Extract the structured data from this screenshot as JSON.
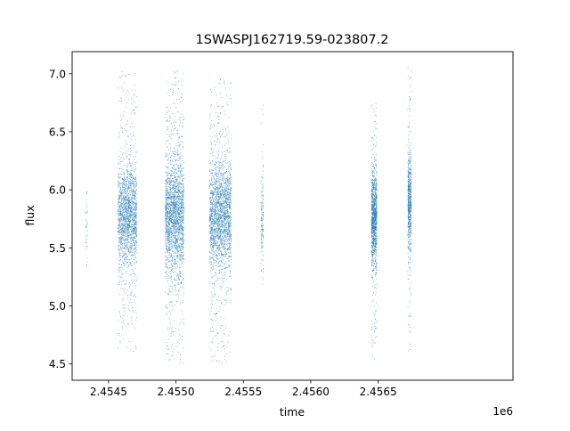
{
  "chart_data": {
    "type": "scatter",
    "title": "1SWASPJ162719.59-023807.2",
    "xlabel": "time",
    "ylabel": "flux",
    "x_offset_label": "1e6",
    "x_ticks": [
      "2.4545",
      "2.4550",
      "2.4555",
      "2.4560",
      "2.4565"
    ],
    "y_ticks": [
      "4.5",
      "5.0",
      "5.5",
      "6.0",
      "6.5",
      "7.0"
    ],
    "xlim": [
      2454230,
      2457500
    ],
    "ylim": [
      4.36,
      7.19
    ],
    "grid": false,
    "marker_color": "#1f77b4",
    "series": [
      {
        "clusters": [
          {
            "x_min": 2454330,
            "x_max": 2454345,
            "center": 5.75,
            "spread": 0.25,
            "y_min": 4.95,
            "y_max": 5.98,
            "n": 40
          },
          {
            "x_min": 2454570,
            "x_max": 2454710,
            "center": 5.78,
            "spread": 0.28,
            "y_min": 4.6,
            "y_max": 7.02,
            "n": 1900
          },
          {
            "x_min": 2454920,
            "x_max": 2455060,
            "center": 5.78,
            "spread": 0.33,
            "y_min": 4.5,
            "y_max": 7.03,
            "n": 2300
          },
          {
            "x_min": 2455250,
            "x_max": 2455410,
            "center": 5.78,
            "spread": 0.3,
            "y_min": 4.5,
            "y_max": 6.95,
            "n": 2300
          },
          {
            "x_min": 2455630,
            "x_max": 2455650,
            "center": 5.75,
            "spread": 0.25,
            "y_min": 5.1,
            "y_max": 6.84,
            "n": 150
          },
          {
            "x_min": 2456450,
            "x_max": 2456490,
            "center": 5.75,
            "spread": 0.25,
            "y_min": 4.52,
            "y_max": 6.75,
            "n": 1200
          },
          {
            "x_min": 2456720,
            "x_max": 2456745,
            "center": 5.9,
            "spread": 0.28,
            "y_min": 4.6,
            "y_max": 7.05,
            "n": 700
          }
        ]
      }
    ]
  }
}
